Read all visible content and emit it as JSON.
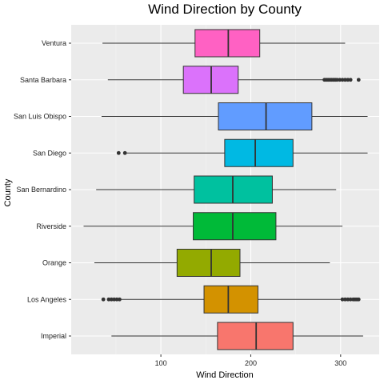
{
  "chart_data": {
    "type": "boxplot",
    "orientation": "horizontal",
    "title": "Wind Direction by County",
    "xlabel": "Wind Direction",
    "ylabel": "County",
    "xlim": [
      0,
      360
    ],
    "xticks": [
      100,
      200,
      300
    ],
    "grid": true,
    "legend": "none",
    "categories": [
      "Imperial",
      "Los Angeles",
      "Orange",
      "Riverside",
      "San Bernardino",
      "San Diego",
      "San Luis Obispo",
      "Santa Barbara",
      "Ventura"
    ],
    "boxes": [
      {
        "category": "Imperial",
        "min": 45,
        "q1": 163,
        "median": 206,
        "q3": 247,
        "max": 325,
        "color": "#F8766D",
        "outliers": []
      },
      {
        "category": "Los Angeles",
        "min": 40,
        "q1": 148,
        "median": 175,
        "q3": 208,
        "max": 300,
        "color": "#D39200",
        "outliers": [
          36,
          42,
          45,
          48,
          51,
          54,
          302,
          305,
          308,
          311,
          314,
          316,
          318,
          320
        ]
      },
      {
        "category": "Orange",
        "min": 26,
        "q1": 118,
        "median": 156,
        "q3": 188,
        "max": 288,
        "color": "#93AA00",
        "outliers": []
      },
      {
        "category": "Riverside",
        "min": 14,
        "q1": 136,
        "median": 180,
        "q3": 228,
        "max": 302,
        "color": "#00BA38",
        "outliers": []
      },
      {
        "category": "San Bernardino",
        "min": 28,
        "q1": 137,
        "median": 180,
        "q3": 224,
        "max": 295,
        "color": "#00C19F",
        "outliers": []
      },
      {
        "category": "San Diego",
        "min": 62,
        "q1": 171,
        "median": 205,
        "q3": 247,
        "max": 330,
        "color": "#00B9E3",
        "outliers": [
          53,
          60
        ]
      },
      {
        "category": "San Luis Obispo",
        "min": 34,
        "q1": 164,
        "median": 217,
        "q3": 268,
        "max": 330,
        "color": "#619CFF",
        "outliers": []
      },
      {
        "category": "Santa Barbara",
        "min": 41,
        "q1": 125,
        "median": 156,
        "q3": 186,
        "max": 281,
        "color": "#DB72FB",
        "outliers": [
          282,
          284,
          286,
          288,
          290,
          292,
          294,
          296,
          299,
          302,
          305,
          308,
          311,
          320
        ]
      },
      {
        "category": "Ventura",
        "min": 35,
        "q1": 138,
        "median": 175,
        "q3": 210,
        "max": 305,
        "color": "#FF61C3",
        "outliers": []
      }
    ]
  }
}
